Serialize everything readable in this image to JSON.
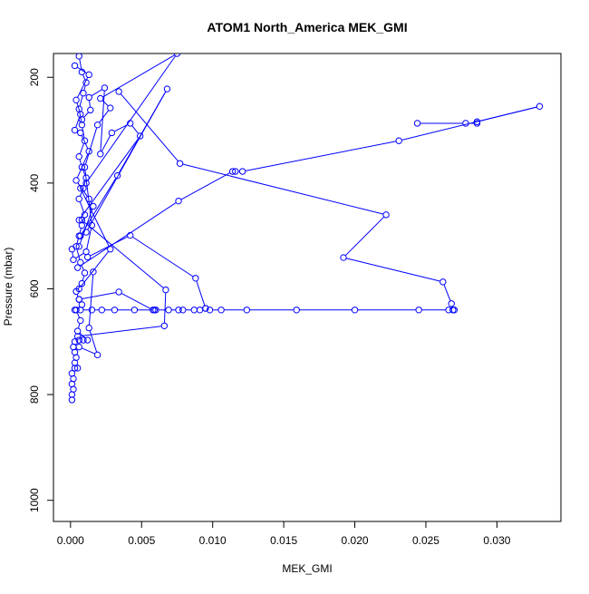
{
  "chart_data": {
    "type": "line",
    "title": "ATOM1 North_America MEK_GMI",
    "xlabel": "MEK_GMI",
    "ylabel": "Pressure (mbar)",
    "xlim": [
      -0.0012,
      0.0345
    ],
    "ylim": [
      1040,
      155
    ],
    "y_inverted": true,
    "grid": false,
    "legend": "none",
    "x_ticks": [
      0.0,
      0.005,
      0.01,
      0.015,
      0.02,
      0.025,
      0.03
    ],
    "x_tick_labels": [
      "0.000",
      "0.005",
      "0.010",
      "0.015",
      "0.020",
      "0.025",
      "0.030"
    ],
    "y_ticks": [
      200,
      400,
      600,
      800,
      1000
    ],
    "y_tick_labels": [
      "200",
      "400",
      "600",
      "800",
      "1000"
    ],
    "color": "#0000ff",
    "marker": "open-circle",
    "series": [
      {
        "name": "",
        "points": [
          [
            0.0001,
            810
          ],
          [
            0.0001,
            800
          ],
          [
            0.0002,
            790
          ],
          [
            0.0001,
            780
          ],
          [
            0.0002,
            770
          ],
          [
            0.0001,
            760
          ],
          [
            0.0003,
            750
          ],
          [
            0.0005,
            750
          ],
          [
            0.0003,
            740
          ],
          [
            0.0004,
            730
          ],
          [
            0.0003,
            720
          ],
          [
            0.0002,
            710
          ],
          [
            0.0003,
            700
          ],
          [
            0.0006,
            697
          ],
          [
            0.0009,
            697
          ],
          [
            0.0012,
            697
          ],
          [
            0.0005,
            680
          ],
          [
            0.0007,
            660
          ],
          [
            0.0004,
            640
          ],
          [
            0.0008,
            630
          ],
          [
            0.0006,
            620
          ],
          [
            0.0004,
            605
          ],
          [
            0.0008,
            590
          ],
          [
            0.001,
            570
          ],
          [
            0.0007,
            550
          ],
          [
            0.0004,
            520
          ],
          [
            0.0006,
            500
          ],
          [
            0.0008,
            480
          ],
          [
            0.001,
            460
          ],
          [
            0.0006,
            430
          ],
          [
            0.0009,
            410
          ],
          [
            0.0011,
            390
          ],
          [
            0.0008,
            370
          ],
          [
            0.0006,
            350
          ],
          [
            0.001,
            320
          ],
          [
            0.0008,
            290
          ],
          [
            0.0006,
            260
          ],
          [
            0.0009,
            230
          ],
          [
            0.0011,
            210
          ],
          [
            0.0008,
            190
          ],
          [
            0.0006,
            160
          ]
        ]
      },
      {
        "name": "",
        "points": [
          [
            0.0003,
            640
          ],
          [
            0.0007,
            640
          ],
          [
            0.0015,
            640
          ],
          [
            0.0022,
            640
          ],
          [
            0.0031,
            640
          ],
          [
            0.0045,
            640
          ],
          [
            0.0059,
            640
          ],
          [
            0.006,
            640
          ],
          [
            0.0069,
            640
          ],
          [
            0.0076,
            640
          ],
          [
            0.0079,
            640
          ],
          [
            0.0087,
            640
          ],
          [
            0.0091,
            640
          ],
          [
            0.0095,
            637
          ],
          [
            0.0098,
            640
          ],
          [
            0.0106,
            640
          ],
          [
            0.0124,
            640
          ],
          [
            0.0159,
            640
          ],
          [
            0.02,
            640
          ],
          [
            0.0245,
            640
          ],
          [
            0.0266,
            640
          ],
          [
            0.0269,
            640
          ],
          [
            0.027,
            640
          ],
          [
            0.0268,
            628
          ],
          [
            0.0262,
            587
          ],
          [
            0.0192,
            541
          ],
          [
            0.0222,
            460
          ],
          [
            0.0077,
            363
          ],
          [
            0.0034,
            227
          ]
        ]
      },
      {
        "name": "",
        "points": [
          [
            0.0006,
            620
          ],
          [
            0.0034,
            606
          ],
          [
            0.0058,
            640
          ]
        ]
      },
      {
        "name": "",
        "points": [
          [
            0.0006,
            600
          ],
          [
            0.0028,
            525
          ],
          [
            0.0007,
            410
          ]
        ]
      },
      {
        "name": "",
        "points": [
          [
            0.0012,
            540
          ],
          [
            0.0042,
            499
          ],
          [
            0.0088,
            580
          ],
          [
            0.0095,
            637
          ]
        ]
      },
      {
        "name": "",
        "points": [
          [
            0.0005,
            560
          ],
          [
            0.0076,
            434
          ],
          [
            0.0114,
            378
          ],
          [
            0.0116,
            378
          ],
          [
            0.0121,
            378
          ],
          [
            0.0231,
            320
          ],
          [
            0.033,
            255
          ],
          [
            0.0286,
            284
          ],
          [
            0.0286,
            287
          ],
          [
            0.0278,
            287
          ],
          [
            0.0244,
            287
          ]
        ]
      },
      {
        "name": "",
        "points": [
          [
            0.0005,
            690
          ],
          [
            0.0066,
            670
          ],
          [
            0.0067,
            602
          ],
          [
            0.0008,
            470
          ]
        ]
      },
      {
        "name": "",
        "points": [
          [
            0.0006,
            710
          ],
          [
            0.0019,
            725
          ],
          [
            0.0013,
            674
          ],
          [
            0.0016,
            568
          ]
        ]
      },
      {
        "name": "",
        "points": [
          [
            0.0007,
            500
          ],
          [
            0.0033,
            386
          ],
          [
            0.0068,
            222
          ],
          [
            0.0011,
            493
          ]
        ]
      },
      {
        "name": "",
        "points": [
          [
            0.0006,
            470
          ],
          [
            0.0049,
            311
          ],
          [
            0.0042,
            287
          ],
          [
            0.0029,
            305
          ],
          [
            0.0021,
            345
          ],
          [
            0.0024,
            220
          ],
          [
            0.0013,
            238
          ],
          [
            0.0014,
            262
          ],
          [
            0.0008,
            280
          ]
        ]
      },
      {
        "name": "",
        "points": [
          [
            0.0006,
            520
          ],
          [
            0.0016,
            444
          ],
          [
            0.0013,
            430
          ],
          [
            0.0004,
            395
          ],
          [
            0.0013,
            340
          ],
          [
            0.0007,
            305
          ],
          [
            0.0003,
            300
          ],
          [
            0.0007,
            270
          ],
          [
            0.0004,
            243
          ],
          [
            0.0013,
            195
          ],
          [
            0.0003,
            178
          ]
        ]
      },
      {
        "name": "",
        "points": [
          [
            0.0011,
            400
          ],
          [
            0.0075,
            155
          ],
          [
            0.0021,
            240
          ],
          [
            0.0028,
            258
          ],
          [
            0.0019,
            290
          ],
          [
            0.001,
            370
          ],
          [
            0.0015,
            480
          ],
          [
            0.0011,
            530
          ],
          [
            0.0002,
            545
          ],
          [
            0.0001,
            525
          ]
        ]
      }
    ]
  }
}
